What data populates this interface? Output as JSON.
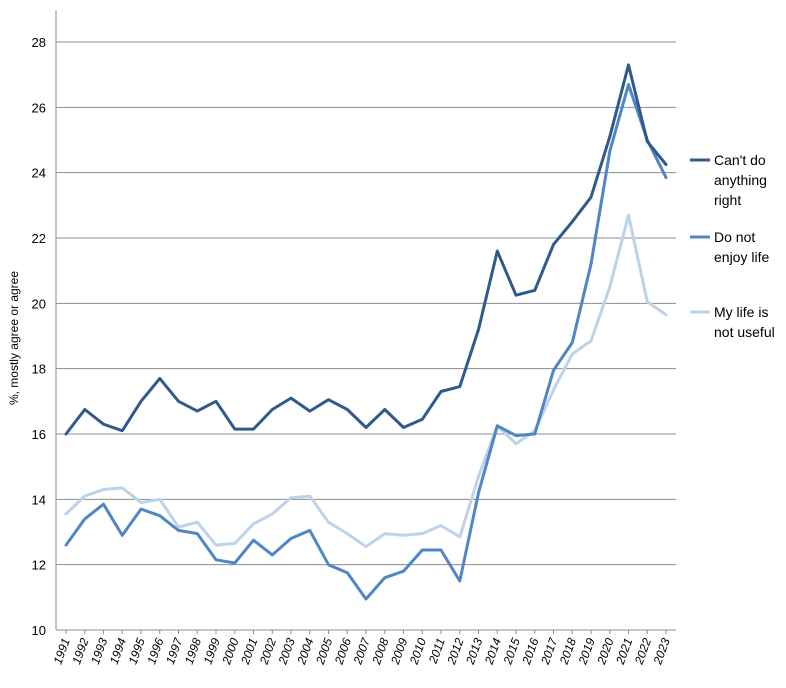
{
  "chart_data": {
    "type": "line",
    "title": "",
    "xlabel": "",
    "ylabel": "%, mostly agree or agree",
    "ylim": [
      10,
      28
    ],
    "yticks": [
      10,
      12,
      14,
      16,
      18,
      20,
      22,
      24,
      26,
      28
    ],
    "grid": true,
    "legend_position": "right",
    "x": [
      "1991",
      "1992",
      "1993",
      "1994",
      "1995",
      "1996",
      "1997",
      "1998",
      "1999",
      "2000",
      "2001",
      "2002",
      "2003",
      "2004",
      "2005",
      "2006",
      "2007",
      "2008",
      "2009",
      "2010",
      "2011",
      "2012",
      "2013",
      "2014",
      "2015",
      "2016",
      "2017",
      "2018",
      "2019",
      "2020",
      "2021",
      "2022",
      "2023"
    ],
    "series": [
      {
        "name": "Can't do anything right",
        "color": "#2f5b8c",
        "values": [
          16.0,
          16.75,
          16.3,
          16.1,
          17.0,
          17.7,
          17.0,
          16.7,
          17.0,
          16.15,
          16.15,
          16.75,
          17.1,
          16.7,
          17.05,
          16.75,
          16.2,
          16.75,
          16.2,
          16.45,
          17.3,
          17.45,
          19.2,
          21.6,
          20.25,
          20.4,
          21.8,
          22.5,
          23.25,
          25.1,
          27.3,
          24.95,
          24.25
        ]
      },
      {
        "name": "Do not enjoy life",
        "color": "#4f86c6",
        "values": [
          12.6,
          13.4,
          13.85,
          12.9,
          13.7,
          13.5,
          13.05,
          12.95,
          12.15,
          12.05,
          12.75,
          12.3,
          12.8,
          13.05,
          12.0,
          11.75,
          10.95,
          11.6,
          11.8,
          12.45,
          12.45,
          11.5,
          14.2,
          16.25,
          15.95,
          16.0,
          17.95,
          18.8,
          21.2,
          24.65,
          26.7,
          25.0,
          23.85
        ]
      },
      {
        "name": "My life is not useful",
        "color": "#bcd3ea",
        "values": [
          13.55,
          14.1,
          14.3,
          14.35,
          13.9,
          14.0,
          13.15,
          13.3,
          12.6,
          12.65,
          13.25,
          13.55,
          14.05,
          14.1,
          13.3,
          12.95,
          12.55,
          12.95,
          12.9,
          12.95,
          13.2,
          12.85,
          14.7,
          16.25,
          15.7,
          16.1,
          17.35,
          18.45,
          18.85,
          20.5,
          22.7,
          20.05,
          19.65
        ]
      }
    ]
  }
}
